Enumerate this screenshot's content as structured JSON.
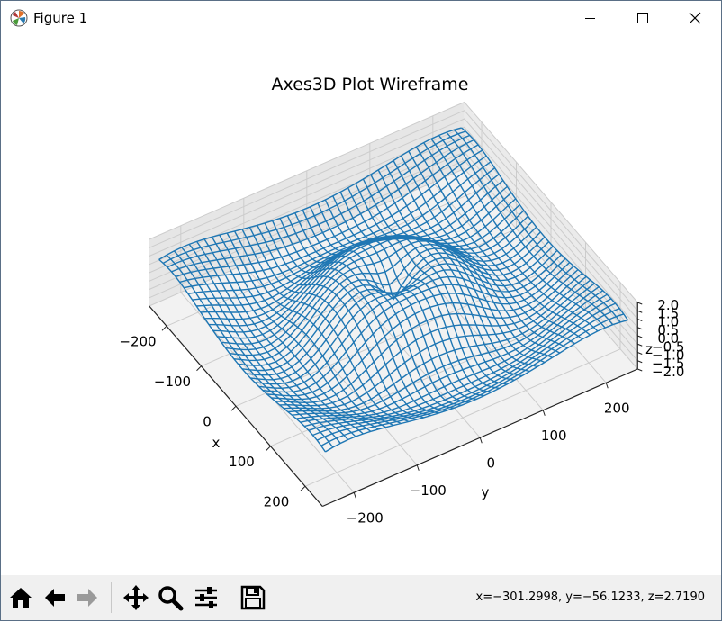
{
  "window": {
    "title": "Figure 1",
    "controls": {
      "minimize": "minimize",
      "maximize": "maximize",
      "close": "close"
    }
  },
  "chart_data": {
    "type": "wireframe-3d",
    "title": "Axes3D Plot Wireframe",
    "xlabel": "x",
    "ylabel": "y",
    "zlabel": "z",
    "x_ticks": [
      "−200",
      "−100",
      "0",
      "100",
      "200"
    ],
    "y_ticks": [
      "−200",
      "−100",
      "0",
      "100",
      "200"
    ],
    "z_ticks": [
      "−2.0",
      "−1.5",
      "−1.0",
      "−0.5",
      "0.0",
      "0.5",
      "1.0",
      "1.5",
      "2.0"
    ],
    "xlim": [
      -250,
      250
    ],
    "ylim": [
      -250,
      250
    ],
    "zlim": [
      -2,
      2
    ],
    "function": "z = 2·sin(r/40) · (1 − r/400) + 0.3, r = sqrt(x² + y²)",
    "grid": true,
    "line_color": "#1f77b4",
    "pane_color": "#f2f2f2",
    "grid_color": "#cccccc"
  },
  "toolbar": {
    "icons": [
      "home-icon",
      "back-icon",
      "forward-icon",
      "pan-icon",
      "zoom-icon",
      "configure-subplots-icon",
      "save-icon"
    ]
  },
  "status": {
    "coordinates": "x=−301.2998, y=−56.1233, z=2.7190"
  }
}
